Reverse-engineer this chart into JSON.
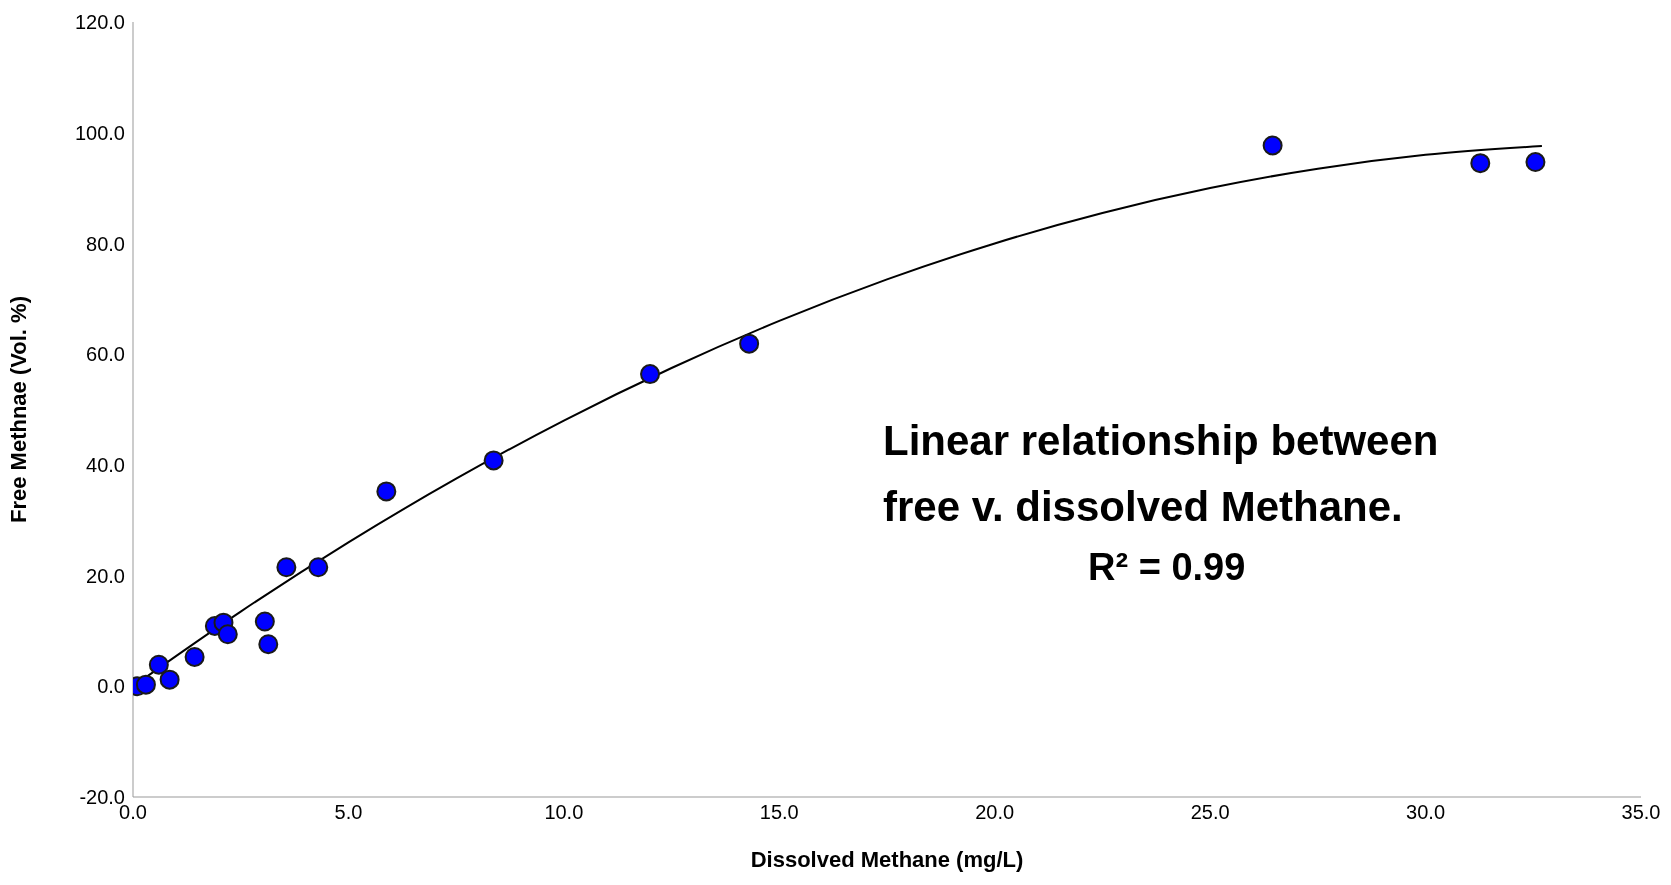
{
  "chart_data": {
    "type": "scatter",
    "xlabel": "Dissolved Methane (mg/L)",
    "ylabel": "Free Methnae (Vol. %)",
    "xlim": [
      0,
      35
    ],
    "xticks": [
      {
        "value": 0,
        "label": "0.0"
      },
      {
        "value": 5,
        "label": "5.0"
      },
      {
        "value": 10,
        "label": "10.0"
      },
      {
        "value": 15,
        "label": "15.0"
      },
      {
        "value": 20,
        "label": "20.0"
      },
      {
        "value": 25,
        "label": "25.0"
      },
      {
        "value": 30,
        "label": "30.0"
      },
      {
        "value": 35,
        "label": "35.0"
      }
    ],
    "ylim": [
      -20,
      120
    ],
    "yticks": [
      {
        "value": -20,
        "label": "-20.0"
      },
      {
        "value": 0,
        "label": "0.0"
      },
      {
        "value": 20,
        "label": "20.0"
      },
      {
        "value": 40,
        "label": "40.0"
      },
      {
        "value": 60,
        "label": "60.0"
      },
      {
        "value": 80,
        "label": "80.0"
      },
      {
        "value": 100,
        "label": "100.0"
      },
      {
        "value": 120,
        "label": "120.0"
      }
    ],
    "grid": false,
    "legend": false,
    "marker": "circle",
    "series": [
      {
        "color": "#0000ff",
        "x": [
          0.1,
          0.3,
          0.6,
          0.85,
          1.43,
          1.9,
          2.1,
          2.2,
          3.06,
          3.14,
          3.56,
          4.3,
          5.88,
          8.37,
          12.0,
          14.3,
          26.45,
          31.27,
          32.55
        ],
        "values": [
          0,
          0.3,
          3.9,
          1.2,
          5.3,
          10.9,
          11.5,
          9.4,
          11.7,
          7.6,
          21.5,
          21.5,
          35.2,
          40.8,
          56.4,
          61.9,
          97.7,
          94.5,
          94.7
        ]
      },
      {
        "type": "line",
        "color": "#000000",
        "marker": "none",
        "x": [
          0,
          2.5,
          5,
          7.5,
          10,
          12.5,
          15,
          17.5,
          20,
          22.5,
          25,
          27.5,
          30,
          32.7
        ],
        "values": [
          0,
          13.5,
          26,
          37.5,
          48,
          57.5,
          66,
          73.5,
          80,
          85.5,
          90,
          93.5,
          96,
          97.6
        ]
      }
    ],
    "annotations": [
      "Linear relationship between free v. dissolved Methane.",
      "R² = 0.99"
    ]
  }
}
